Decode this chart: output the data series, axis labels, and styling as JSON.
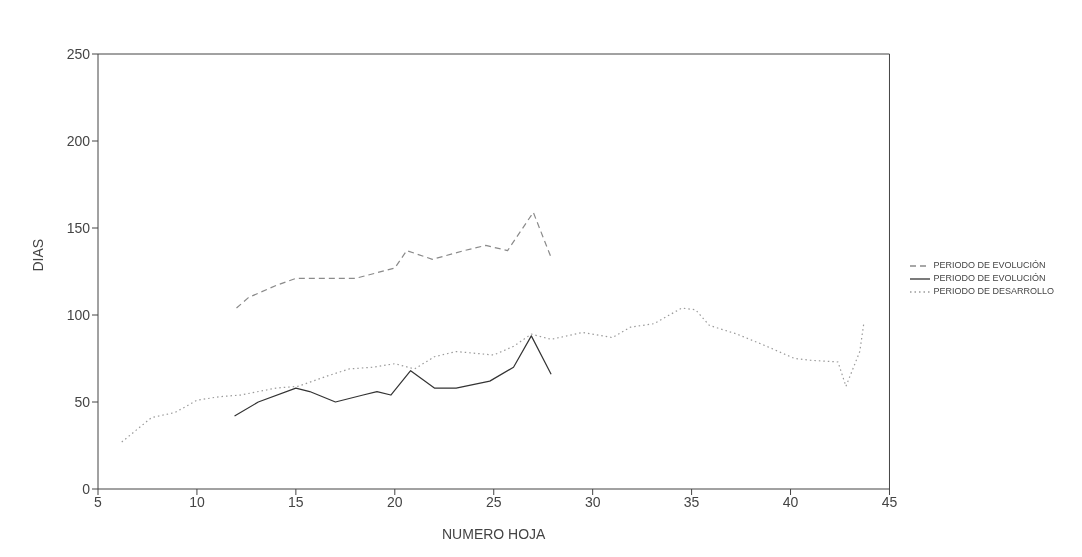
{
  "chart_data": {
    "type": "line",
    "xlabel": "NUMERO HOJA",
    "ylabel": "DIAS",
    "xlim": [
      5,
      45
    ],
    "ylim": [
      0,
      250
    ],
    "xticks": [
      5,
      10,
      15,
      20,
      25,
      30,
      35,
      40,
      45
    ],
    "yticks": [
      0,
      50,
      100,
      150,
      200,
      250
    ],
    "legend": "right",
    "marker": "none",
    "series": [
      {
        "name": "PERIODO DE EVOLUCIÓN",
        "color": "#8a8a8a",
        "line_style": "dashed",
        "x": [
          12,
          12.6,
          14,
          15,
          18,
          20,
          20.6,
          21.9,
          23.5,
          24.6,
          25.7,
          27,
          27.9
        ],
        "values": [
          104,
          110,
          117,
          121,
          121,
          127,
          137,
          132,
          137,
          140,
          137,
          159,
          133
        ]
      },
      {
        "name": "PERIODO DE EVOLUCIÓN",
        "color": "#333333",
        "line_style": "solid",
        "x": [
          11.9,
          13.1,
          15,
          15.7,
          17,
          18.4,
          19.1,
          19.8,
          20.8,
          22,
          23.1,
          24.8,
          26,
          26.9,
          27.9
        ],
        "values": [
          42,
          50,
          58,
          56,
          50,
          54,
          56,
          54,
          68,
          58,
          58,
          62,
          70,
          88,
          66
        ]
      },
      {
        "name": "PERIODO DE DESARROLLO",
        "color": "#9a9a9a",
        "line_style": "dotted",
        "x": [
          6.2,
          7.7,
          8.9,
          10,
          11.1,
          12.2,
          14,
          15.1,
          16.6,
          17.7,
          18.9,
          20,
          21,
          22,
          23.1,
          25,
          26,
          26.9,
          27.9,
          29.5,
          31,
          31.9,
          33.1,
          34.5,
          35.2,
          35.9,
          37.3,
          38.8,
          40.2,
          41,
          42.4,
          42.8,
          43.5,
          43.7
        ],
        "values": [
          27,
          41,
          44,
          51,
          53,
          54,
          58,
          59,
          65,
          69,
          70,
          72,
          69,
          76,
          79,
          77,
          82,
          89,
          86,
          90,
          87,
          93,
          95,
          104,
          103,
          94,
          89,
          82,
          75,
          74,
          73,
          59,
          79,
          95
        ]
      }
    ]
  }
}
